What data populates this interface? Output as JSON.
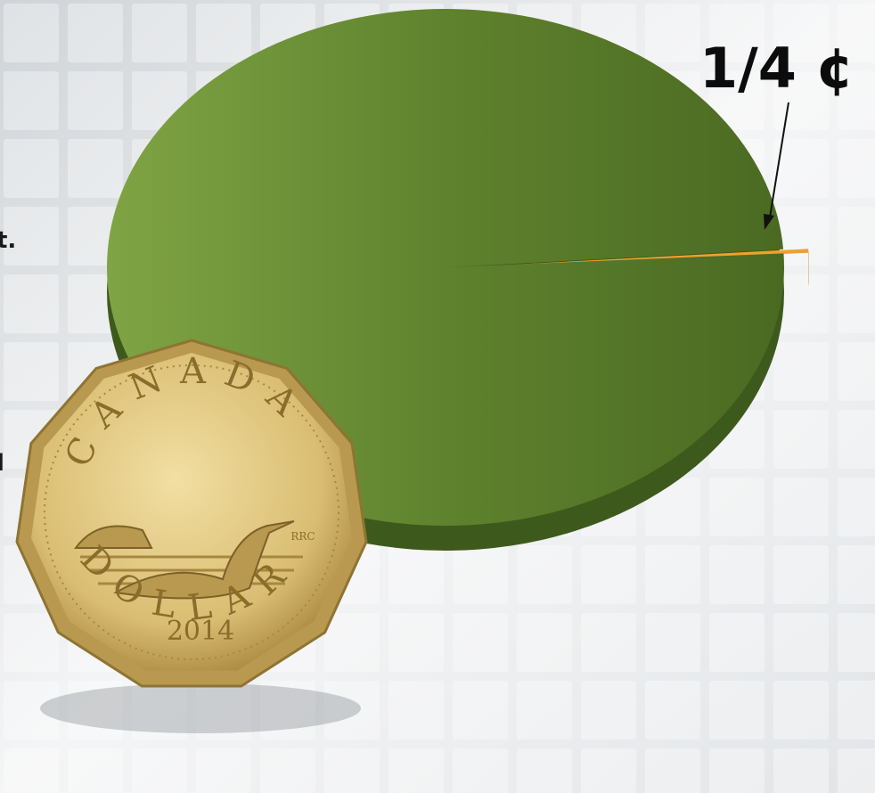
{
  "chart_data": {
    "type": "pie",
    "values": [
      99.75,
      0.25
    ],
    "value_labels": [
      null,
      "1/4 ¢"
    ],
    "colors": [
      "#6a8f35",
      "#f0a030"
    ],
    "annotations": [
      "t.",
      "l"
    ]
  },
  "coin": {
    "top": "CANADA",
    "bottom": "DOLLAR",
    "year": "2014",
    "mark": "RRC"
  }
}
